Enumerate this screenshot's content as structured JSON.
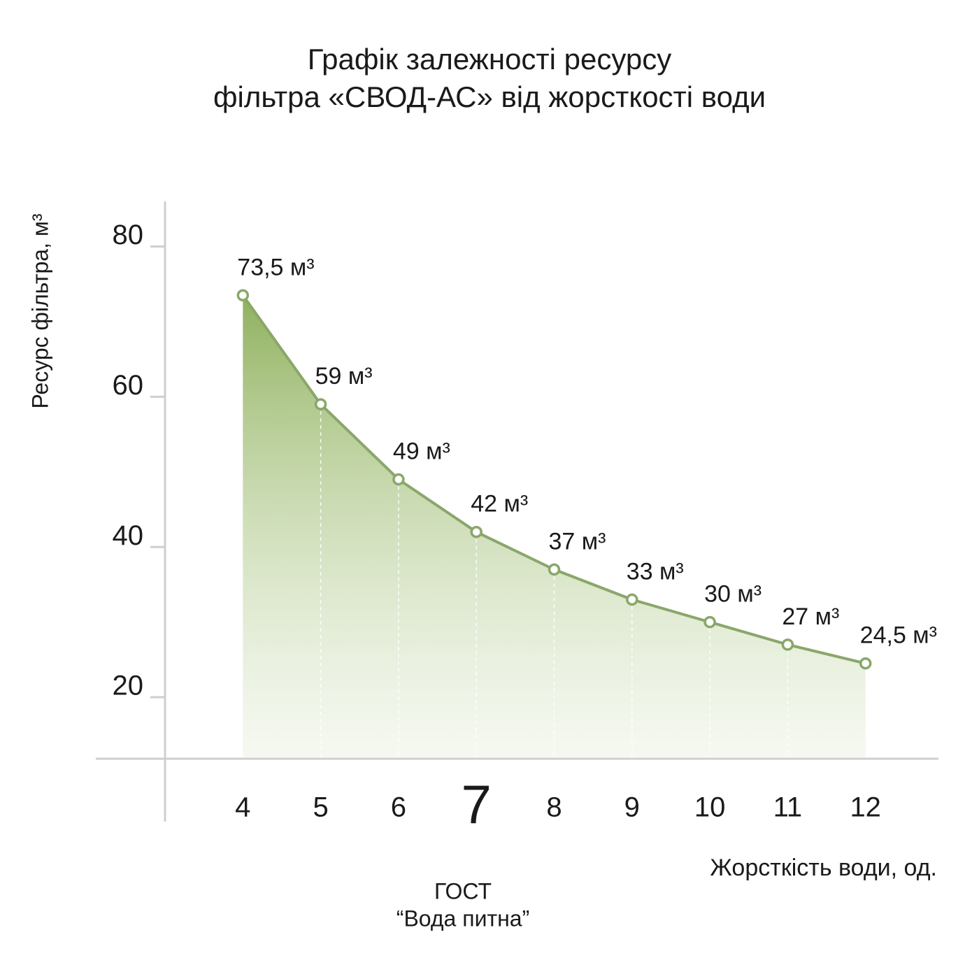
{
  "chart_data": {
    "type": "line",
    "title": [
      "Графік залежності ресурсу",
      "фільтра «СВОД-АС» від жорсткості води"
    ],
    "y_label": "Ресурс фільтра, м³",
    "x_label": "Жорсткість води, од.",
    "annotation": [
      "ГОСТ",
      "“Вода питна”"
    ],
    "x": [
      4,
      5,
      6,
      7,
      8,
      9,
      10,
      11,
      12
    ],
    "series": [
      {
        "name": "Ресурс фільтра",
        "color": "#8aa76a",
        "values": [
          73.5,
          59,
          49,
          42,
          37,
          33,
          30,
          27,
          24.5
        ],
        "value_labels": [
          "73,5 м³",
          "59 м³",
          "49 м³",
          "42 м³",
          "37 м³",
          "33 м³",
          "30 м³",
          "27 м³",
          "24,5 м³"
        ]
      }
    ],
    "xlim": [
      3,
      13
    ],
    "xticks": [
      4,
      5,
      6,
      7,
      8,
      9,
      10,
      11,
      12
    ],
    "ylim": [
      12,
      86
    ],
    "yticks": [
      20,
      40,
      60,
      80
    ]
  }
}
